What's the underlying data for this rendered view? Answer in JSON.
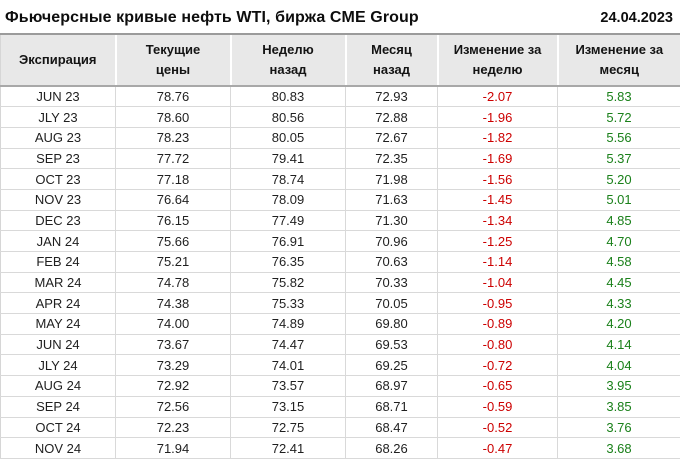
{
  "header": {
    "title": "Фьючерсные кривые нефть WTI, биржа CME Group",
    "date": "24.04.2023"
  },
  "colors": {
    "negative_change": "#cc0000",
    "positive_change": "#1a801a",
    "header_background": "#e8e8e8"
  },
  "chart_data": {
    "type": "table",
    "title": "Фьючерсные кривые нефть WTI, биржа CME Group",
    "date": "24.04.2023",
    "columns": [
      "Экспирация",
      "Текущие\nцены",
      "Неделю\nназад",
      "Месяц\nназад",
      "Изменение за\nнеделю",
      "Изменение за\nмесяц"
    ],
    "column_names_flat": [
      "Экспирация",
      "Текущие цены",
      "Неделю назад",
      "Месяц назад",
      "Изменение за неделю",
      "Изменение за месяц"
    ],
    "rows": [
      [
        "JUN 23",
        "78.76",
        "80.83",
        "72.93",
        "-2.07",
        "5.83"
      ],
      [
        "JLY 23",
        "78.60",
        "80.56",
        "72.88",
        "-1.96",
        "5.72"
      ],
      [
        "AUG 23",
        "78.23",
        "80.05",
        "72.67",
        "-1.82",
        "5.56"
      ],
      [
        "SEP 23",
        "77.72",
        "79.41",
        "72.35",
        "-1.69",
        "5.37"
      ],
      [
        "OCT 23",
        "77.18",
        "78.74",
        "71.98",
        "-1.56",
        "5.20"
      ],
      [
        "NOV 23",
        "76.64",
        "78.09",
        "71.63",
        "-1.45",
        "5.01"
      ],
      [
        "DEC 23",
        "76.15",
        "77.49",
        "71.30",
        "-1.34",
        "4.85"
      ],
      [
        "JAN 24",
        "75.66",
        "76.91",
        "70.96",
        "-1.25",
        "4.70"
      ],
      [
        "FEB 24",
        "75.21",
        "76.35",
        "70.63",
        "-1.14",
        "4.58"
      ],
      [
        "MAR 24",
        "74.78",
        "75.82",
        "70.33",
        "-1.04",
        "4.45"
      ],
      [
        "APR 24",
        "74.38",
        "75.33",
        "70.05",
        "-0.95",
        "4.33"
      ],
      [
        "MAY 24",
        "74.00",
        "74.89",
        "69.80",
        "-0.89",
        "4.20"
      ],
      [
        "JUN 24",
        "73.67",
        "74.47",
        "69.53",
        "-0.80",
        "4.14"
      ],
      [
        "JLY 24",
        "73.29",
        "74.01",
        "69.25",
        "-0.72",
        "4.04"
      ],
      [
        "AUG 24",
        "72.92",
        "73.57",
        "68.97",
        "-0.65",
        "3.95"
      ],
      [
        "SEP 24",
        "72.56",
        "73.15",
        "68.71",
        "-0.59",
        "3.85"
      ],
      [
        "OCT 24",
        "72.23",
        "72.75",
        "68.47",
        "-0.52",
        "3.76"
      ],
      [
        "NOV 24",
        "71.94",
        "72.41",
        "68.26",
        "-0.47",
        "3.68"
      ]
    ]
  }
}
